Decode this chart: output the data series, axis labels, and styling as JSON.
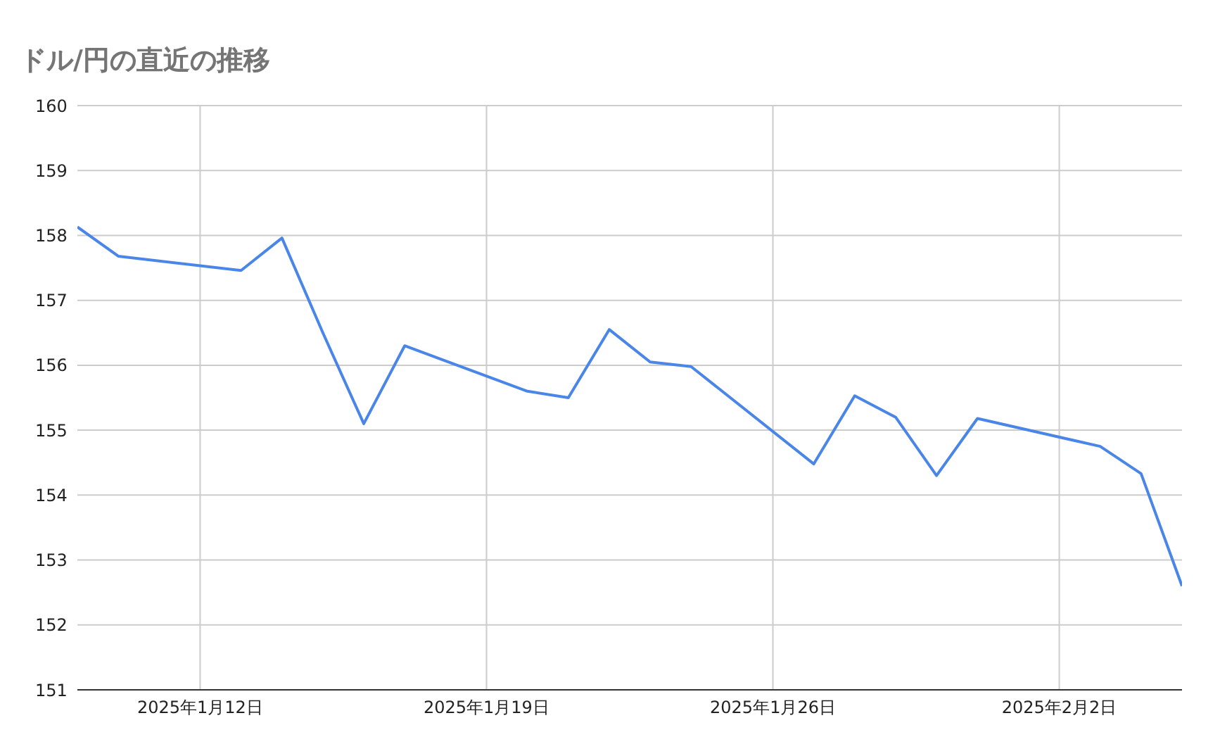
{
  "chart_data": {
    "type": "line",
    "title": "ドル/円の直近の推移",
    "x": [
      "2025-01-09",
      "2025-01-10",
      "2025-01-13",
      "2025-01-14",
      "2025-01-15",
      "2025-01-16",
      "2025-01-17",
      "2025-01-20",
      "2025-01-21",
      "2025-01-22",
      "2025-01-23",
      "2025-01-24",
      "2025-01-27",
      "2025-01-28",
      "2025-01-29",
      "2025-01-30",
      "2025-01-31",
      "2025-02-03",
      "2025-02-04",
      "2025-02-05"
    ],
    "series": [
      {
        "color": "#4a86e8",
        "values": [
          158.13,
          157.68,
          157.46,
          157.96,
          156.5,
          155.1,
          156.3,
          155.6,
          155.5,
          156.55,
          156.05,
          155.98,
          154.48,
          155.53,
          155.2,
          154.3,
          155.18,
          154.75,
          154.33,
          152.6
        ]
      }
    ],
    "xlim": [
      "2025-01-09",
      "2025-02-05"
    ],
    "xticks": [
      {
        "value": "2025-01-12",
        "label": "2025年1月12日"
      },
      {
        "value": "2025-01-19",
        "label": "2025年1月19日"
      },
      {
        "value": "2025-01-26",
        "label": "2025年1月26日"
      },
      {
        "value": "2025-02-02",
        "label": "2025年2月2日"
      }
    ],
    "ylim": [
      151,
      160
    ],
    "yticks": [
      151,
      152,
      153,
      154,
      155,
      156,
      157,
      158,
      159,
      160
    ],
    "grid": true,
    "marker": "none",
    "line_style": "solid",
    "legend": false
  }
}
